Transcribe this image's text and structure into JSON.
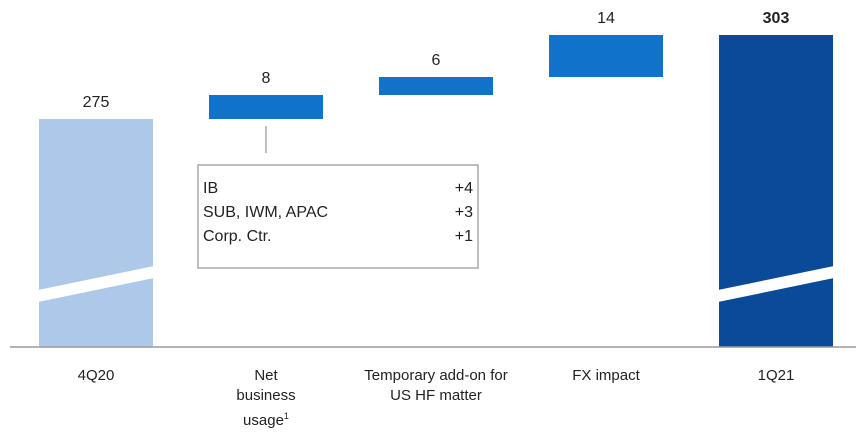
{
  "chart_data": {
    "type": "waterfall",
    "categories": [
      "4Q20",
      "Net business usage",
      "Temporary add-on for US HF matter",
      "FX impact",
      "1Q21"
    ],
    "category_footnotes": [
      null,
      "1",
      null,
      null,
      null
    ],
    "values": [
      275,
      8,
      6,
      14,
      303
    ],
    "measure": [
      "absolute",
      "relative",
      "relative",
      "relative",
      "total"
    ],
    "colors": [
      "#adc8e8",
      "#1172cc",
      "#1172cc",
      "#1172cc",
      "#0b4a96"
    ],
    "bold_labels": [
      false,
      false,
      false,
      false,
      true
    ],
    "axis_break": true,
    "annotation": {
      "rows": [
        [
          "IB",
          "+4"
        ],
        [
          "SUB, IWM, APAC",
          "+3"
        ],
        [
          "Corp. Ctr.",
          "+1"
        ]
      ]
    }
  }
}
